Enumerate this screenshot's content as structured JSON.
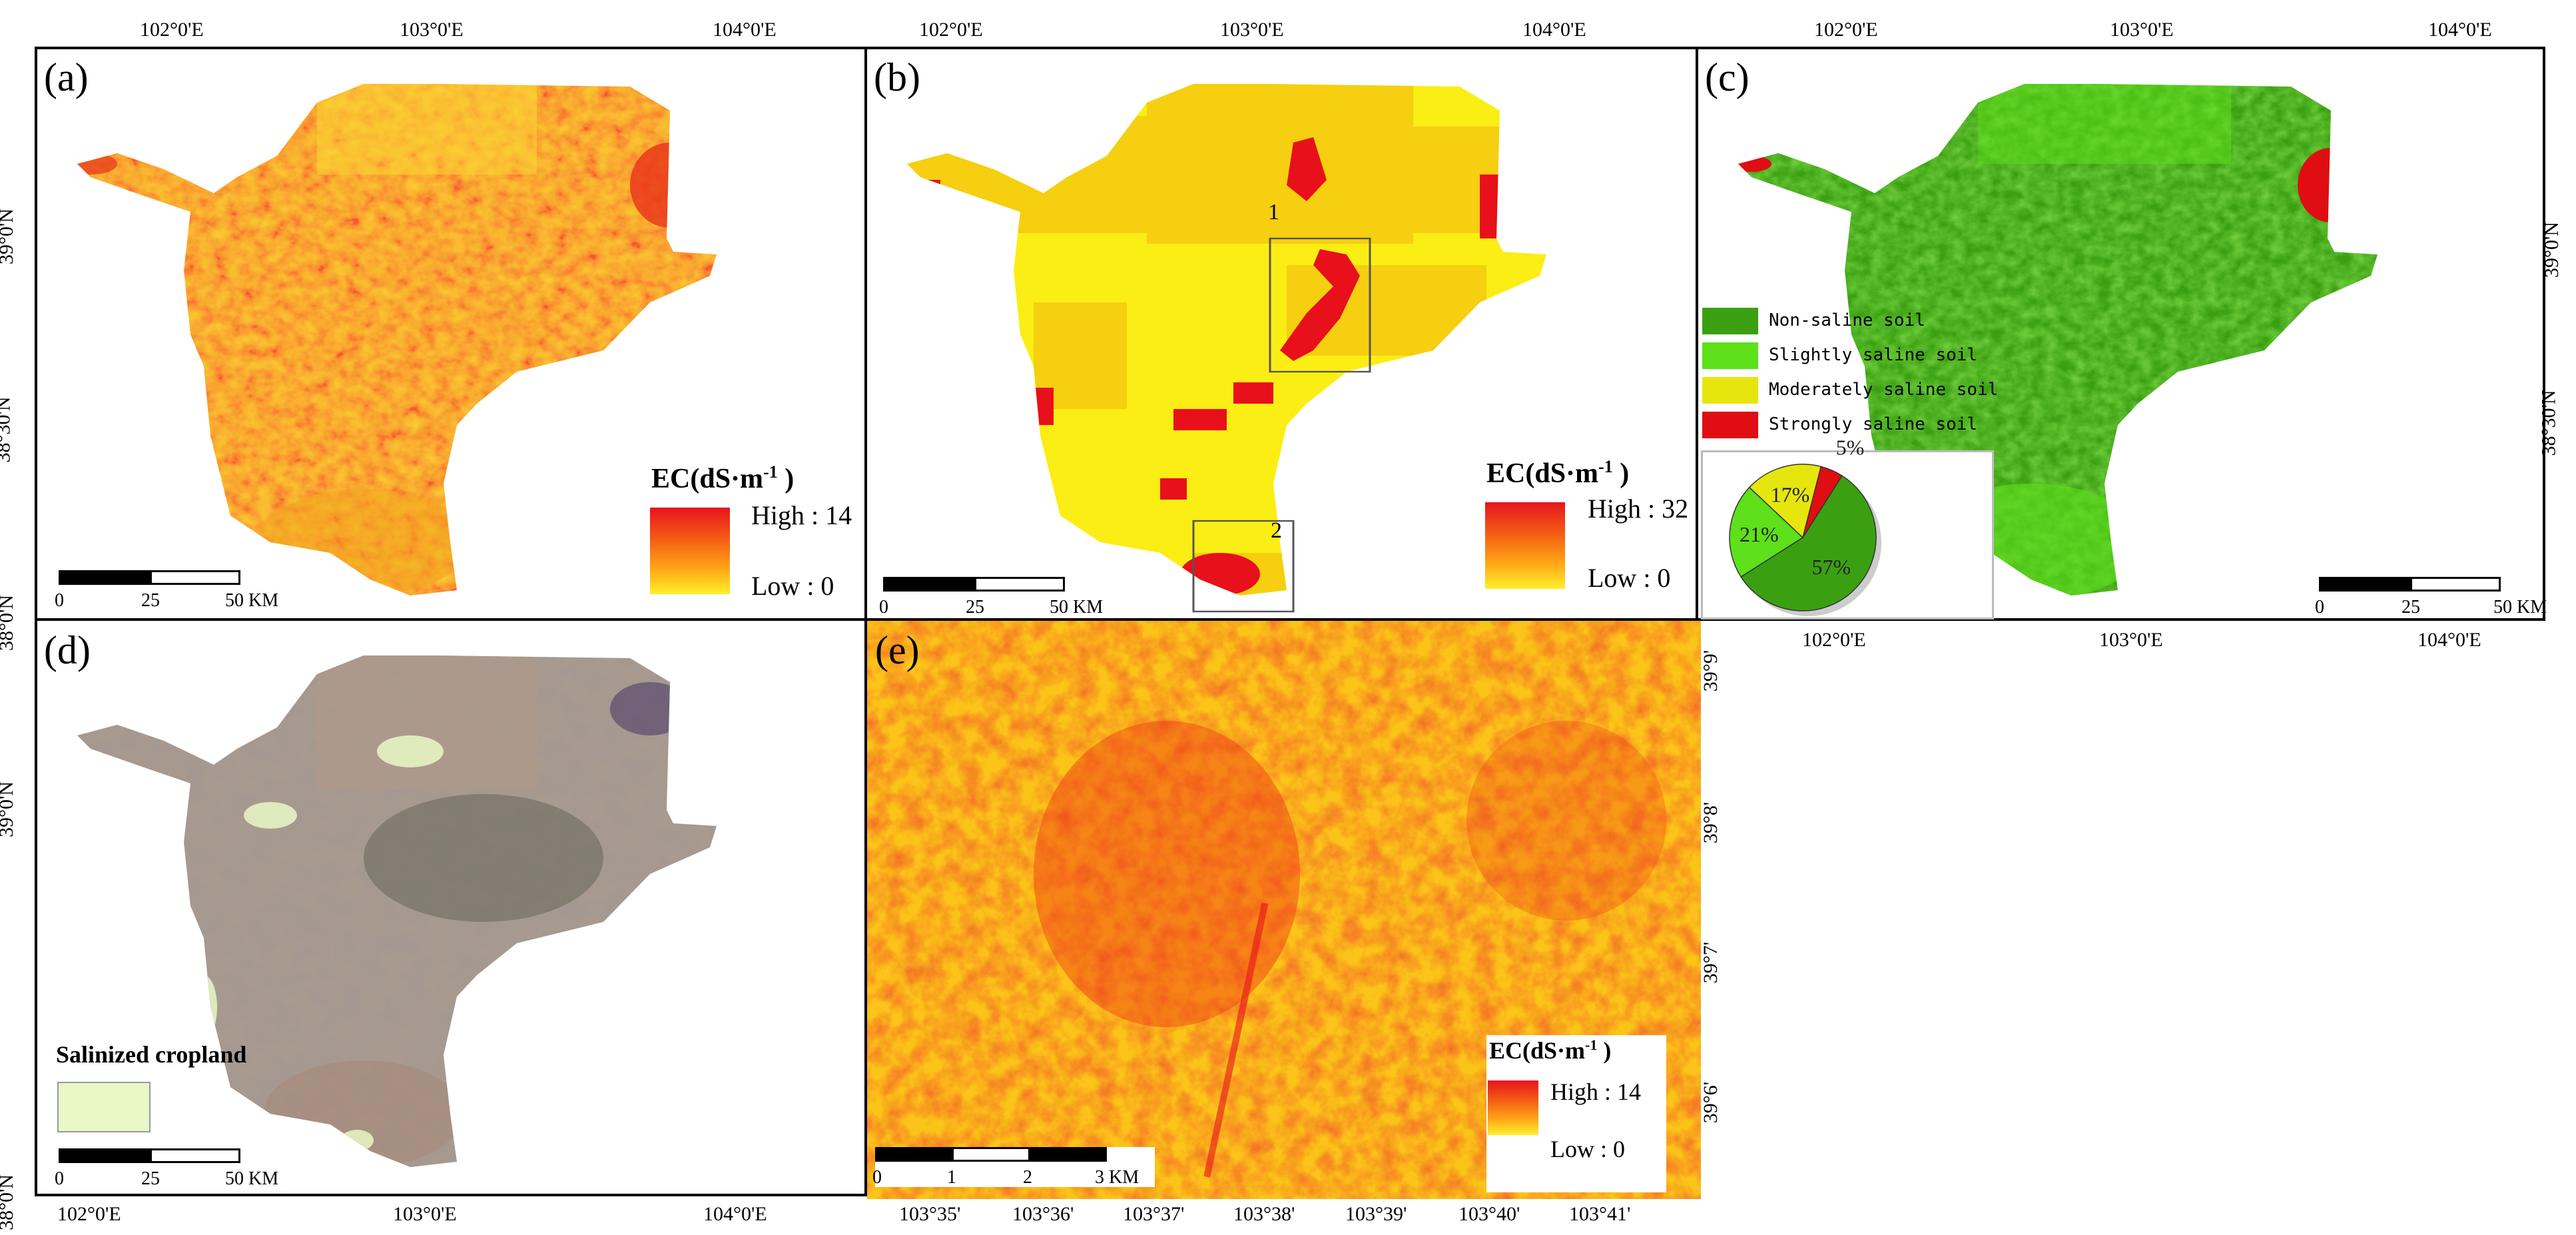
{
  "panels": {
    "a": {
      "label": "(a)"
    },
    "b": {
      "label": "(b)"
    },
    "c": {
      "label": "(c)"
    },
    "d": {
      "label": "(d)"
    },
    "e": {
      "label": "(e)"
    }
  },
  "axes": {
    "lon_ticks": [
      "102°0'E",
      "103°0'E",
      "104°0'E"
    ],
    "lat_ticks": [
      "39°0'N",
      "38°30'N",
      "38°0'N"
    ],
    "detail_lon_ticks": [
      "103°35'",
      "103°36'",
      "103°37'",
      "103°38'",
      "103°39'",
      "103°40'",
      "103°41'"
    ],
    "detail_lat_ticks": [
      "39°9'",
      "39°8'",
      "39°7'",
      "39°6'"
    ]
  },
  "scalebar": {
    "labels": [
      "0",
      "25",
      "50 KM"
    ]
  },
  "scalebar_detail": {
    "labels": [
      "0",
      "1",
      "2",
      "3 KM"
    ]
  },
  "legend_a": {
    "title": "EC(dS·m",
    "sup": "-1",
    "close": ")",
    "high": "High : 14",
    "low": "Low : 0"
  },
  "legend_b": {
    "title": "EC(dS·m",
    "sup": "-1",
    "close": ")",
    "high": "High : 32",
    "low": "Low : 0"
  },
  "legend_e": {
    "title": "EC(dS·m",
    "sup": "-1",
    "close": ")",
    "high": "High : 14",
    "low": "Low : 0"
  },
  "boxes": {
    "box1": "1",
    "box2": "2"
  },
  "classes": [
    {
      "label": "Non-saline soil",
      "color": "#3aa012"
    },
    {
      "label": "Slightly saline soil",
      "color": "#5ee01a"
    },
    {
      "label": "Moderately saline soil",
      "color": "#e6e60e"
    },
    {
      "label": "Strongly saline soil",
      "color": "#e00d12"
    }
  ],
  "chart_data": {
    "type": "pie",
    "title": "",
    "categories": [
      "Non-saline soil",
      "Slightly saline soil",
      "Moderately saline soil",
      "Strongly saline soil"
    ],
    "values": [
      57,
      21,
      17,
      5
    ],
    "labels": [
      "57%",
      "21%",
      "17%",
      "5%"
    ],
    "colors": [
      "#3aa012",
      "#5ee01a",
      "#e6e60e",
      "#e00d12"
    ]
  },
  "legend_d": {
    "title": "Salinized cropland",
    "swatch_color": "#e8f8c6"
  }
}
